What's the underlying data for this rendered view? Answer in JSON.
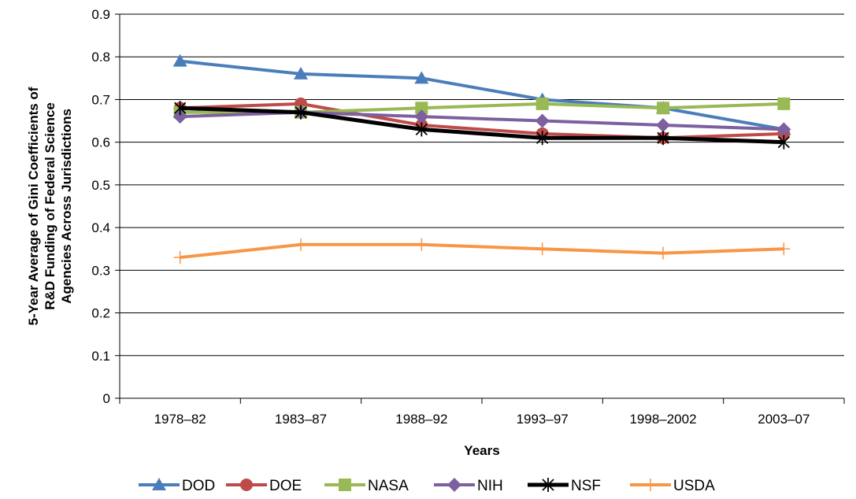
{
  "chart_data": {
    "type": "line",
    "title": "",
    "xlabel": "Years",
    "ylabel": "5-Year Average of Gini Coefficients of R&D Funding of Federal Science Agencies Across Jurisdictions",
    "ylabel_lines": [
      "5-Year Average of Gini Coefficients of",
      "R&D Funding of Federal Science",
      "Agencies Across Jurisdictions"
    ],
    "categories": [
      "1978–82",
      "1983–87",
      "1988–92",
      "1993–97",
      "1998–2002",
      "2003–07"
    ],
    "ylim": [
      0,
      0.9
    ],
    "yticks": [
      "0",
      "0.1",
      "0.2",
      "0.3",
      "0.4",
      "0.5",
      "0.6",
      "0.7",
      "0.8",
      "0.9"
    ],
    "grid": true,
    "legend_position": "bottom",
    "series": [
      {
        "name": "DOD",
        "values": [
          0.79,
          0.76,
          0.75,
          0.7,
          0.68,
          0.63
        ],
        "color": "#4a7ebb",
        "marker": "triangle"
      },
      {
        "name": "DOE",
        "values": [
          0.68,
          0.69,
          0.64,
          0.62,
          0.61,
          0.62
        ],
        "color": "#be4b48",
        "marker": "circle"
      },
      {
        "name": "NASA",
        "values": [
          0.67,
          0.67,
          0.68,
          0.69,
          0.68,
          0.69
        ],
        "color": "#98b954",
        "marker": "square"
      },
      {
        "name": "NIH",
        "values": [
          0.66,
          0.67,
          0.66,
          0.65,
          0.64,
          0.63
        ],
        "color": "#7d60a0",
        "marker": "diamond"
      },
      {
        "name": "NSF",
        "values": [
          0.68,
          0.67,
          0.63,
          0.61,
          0.61,
          0.6
        ],
        "color": "#000000",
        "marker": "star"
      },
      {
        "name": "USDA",
        "values": [
          0.33,
          0.36,
          0.36,
          0.35,
          0.34,
          0.35
        ],
        "color": "#f79646",
        "marker": "plus"
      }
    ]
  }
}
